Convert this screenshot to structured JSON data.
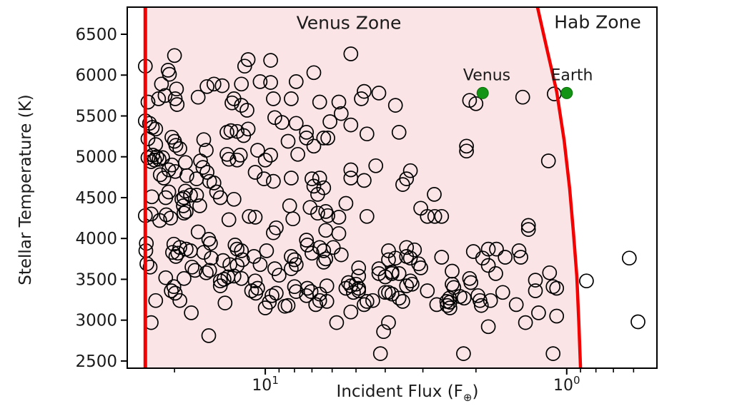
{
  "figure": {
    "venus_zone_label": "Venus Zone",
    "hab_zone_label": "Hab Zone"
  },
  "style": {
    "boundary_red": "#f40000",
    "venus_zone_fill": "#fbe4e6",
    "planet_green": "#149414",
    "hab_label_green": "#156415",
    "marker_edge": "#000000",
    "text_black": "#1a1a1a"
  },
  "chart_data": {
    "type": "scatter",
    "title": "",
    "xlabel_parts": {
      "main": "Incident Flux (F",
      "sub": "⊕",
      "end": ")"
    },
    "ylabel": "Stellar Temperature (K)",
    "x_axis": {
      "scale": "log",
      "inverted": true,
      "range_left": 28.7,
      "range_right": 0.502,
      "major_ticks": [
        {
          "value": 10,
          "base": "10",
          "exponent": "1"
        },
        {
          "value": 1,
          "base": "10",
          "exponent": "0"
        }
      ],
      "minor_ticks": [
        20,
        9,
        8,
        7,
        6,
        5,
        4,
        3,
        2,
        0.9,
        0.8,
        0.7,
        0.6
      ]
    },
    "y_axis": {
      "range_bottom": 2412,
      "range_top": 6832,
      "ticks": [
        6500,
        6000,
        5500,
        5000,
        4500,
        4000,
        3500,
        3000,
        2500
      ]
    },
    "zones": {
      "venus_zone": {
        "label": "Venus Zone",
        "inner_edge_flux": 25.0,
        "outer_edge_curve": [
          [
            1.25,
            6830
          ],
          [
            1.16,
            6300
          ],
          [
            1.08,
            5800
          ],
          [
            1.02,
            5200
          ],
          [
            0.978,
            4610
          ],
          [
            0.95,
            4070
          ],
          [
            0.926,
            3540
          ],
          [
            0.912,
            2980
          ],
          [
            0.9,
            2410
          ]
        ]
      },
      "hab_zone": {
        "label": "Hab Zone"
      }
    },
    "reference_planets": [
      {
        "label": "Venus",
        "flux": 1.9,
        "temp": 5780
      },
      {
        "label": "Earth",
        "flux": 1.0,
        "temp": 5780
      }
    ],
    "points": [
      [
        20,
        6240
      ],
      [
        25,
        6110
      ],
      [
        21,
        6060
      ],
      [
        20.8,
        6010
      ],
      [
        22.1,
        5890
      ],
      [
        19.7,
        5830
      ],
      [
        15.6,
        5860
      ],
      [
        14.8,
        5890
      ],
      [
        13.9,
        5870
      ],
      [
        12,
        5890
      ],
      [
        11.4,
        6190
      ],
      [
        11.7,
        6110
      ],
      [
        9.6,
        6180
      ],
      [
        10.4,
        5920
      ],
      [
        9.6,
        5910
      ],
      [
        7.9,
        5920
      ],
      [
        16.7,
        5730
      ],
      [
        24.5,
        5670
      ],
      [
        22.6,
        5710
      ],
      [
        21.5,
        5750
      ],
      [
        19.9,
        5710
      ],
      [
        19.6,
        5640
      ],
      [
        12.7,
        5710
      ],
      [
        12.9,
        5660
      ],
      [
        12,
        5630
      ],
      [
        11.5,
        5570
      ],
      [
        9.4,
        5710
      ],
      [
        8.2,
        5710
      ],
      [
        9.3,
        5480
      ],
      [
        8.8,
        5420
      ],
      [
        25,
        5440
      ],
      [
        24.2,
        5410
      ],
      [
        23.7,
        5360
      ],
      [
        23.1,
        5340
      ],
      [
        24.5,
        5220
      ],
      [
        23.1,
        5150
      ],
      [
        20.4,
        5240
      ],
      [
        20,
        5190
      ],
      [
        19.8,
        5140
      ],
      [
        19.2,
        5100
      ],
      [
        16,
        5210
      ],
      [
        15.7,
        5080
      ],
      [
        13.4,
        5300
      ],
      [
        13,
        5320
      ],
      [
        12.4,
        5310
      ],
      [
        11.8,
        5260
      ],
      [
        11.4,
        5340
      ],
      [
        10.6,
        5080
      ],
      [
        9.6,
        5020
      ],
      [
        10,
        4960
      ],
      [
        8.4,
        5190
      ],
      [
        24.5,
        4990
      ],
      [
        23.6,
        5020
      ],
      [
        22.9,
        5000
      ],
      [
        22.5,
        4970
      ],
      [
        21.9,
        4990
      ],
      [
        23.3,
        4960
      ],
      [
        23.9,
        4940
      ],
      [
        20.4,
        4900
      ],
      [
        20.9,
        4840
      ],
      [
        19.9,
        4820
      ],
      [
        22.3,
        4780
      ],
      [
        21.7,
        4740
      ],
      [
        18.4,
        4930
      ],
      [
        16.4,
        4950
      ],
      [
        16.1,
        4870
      ],
      [
        15.6,
        4810
      ],
      [
        18.2,
        4770
      ],
      [
        16.9,
        4730
      ],
      [
        15.3,
        4700
      ],
      [
        14.8,
        4680
      ],
      [
        13.4,
        5030
      ],
      [
        13.2,
        4970
      ],
      [
        12.4,
        4960
      ],
      [
        12.1,
        5020
      ],
      [
        10.8,
        4810
      ],
      [
        10.1,
        4730
      ],
      [
        9.4,
        4700
      ],
      [
        8.2,
        4740
      ],
      [
        7.8,
        5030
      ],
      [
        7.9,
        5410
      ],
      [
        5.2,
        6260
      ],
      [
        6.9,
        6030
      ],
      [
        4.7,
        5800
      ],
      [
        4.8,
        5710
      ],
      [
        4.2,
        5780
      ],
      [
        6.6,
        5670
      ],
      [
        5.7,
        5670
      ],
      [
        3.7,
        5630
      ],
      [
        5.6,
        5530
      ],
      [
        6.1,
        5430
      ],
      [
        5.2,
        5390
      ],
      [
        4.6,
        5280
      ],
      [
        3.6,
        5300
      ],
      [
        6.4,
        5230
      ],
      [
        6.2,
        5230
      ],
      [
        7.3,
        5300
      ],
      [
        7.3,
        5230
      ],
      [
        6.9,
        5130
      ],
      [
        4.3,
        4890
      ],
      [
        5.2,
        4840
      ],
      [
        5.2,
        4740
      ],
      [
        4.7,
        4710
      ],
      [
        3.3,
        4830
      ],
      [
        3.4,
        4730
      ],
      [
        3.5,
        4660
      ],
      [
        7,
        4730
      ],
      [
        6.6,
        4740
      ],
      [
        6.9,
        4640
      ],
      [
        6.4,
        4620
      ],
      [
        6.7,
        4540
      ],
      [
        2.1,
        5690
      ],
      [
        2,
        5650
      ],
      [
        2.15,
        5130
      ],
      [
        2.15,
        5070
      ],
      [
        1.1,
        5770
      ],
      [
        1.4,
        5730
      ],
      [
        1.15,
        4950
      ],
      [
        23.8,
        4510
      ],
      [
        21.4,
        4500
      ],
      [
        20.9,
        4570
      ],
      [
        18.9,
        4480
      ],
      [
        18.4,
        4580
      ],
      [
        17.7,
        4530
      ],
      [
        18.6,
        4500
      ],
      [
        16.9,
        4530
      ],
      [
        14.5,
        4570
      ],
      [
        14.1,
        4500
      ],
      [
        12.7,
        4480
      ],
      [
        18.7,
        4400
      ],
      [
        18.3,
        4330
      ],
      [
        18.6,
        4310
      ],
      [
        16.5,
        4400
      ],
      [
        25,
        4280
      ],
      [
        23.9,
        4300
      ],
      [
        22.4,
        4220
      ],
      [
        21.3,
        4290
      ],
      [
        20.6,
        4250
      ],
      [
        13.2,
        4230
      ],
      [
        11.3,
        4270
      ],
      [
        10.8,
        4260
      ],
      [
        16.7,
        4080
      ],
      [
        9.4,
        4070
      ],
      [
        9.2,
        4130
      ],
      [
        24.8,
        3940
      ],
      [
        24.9,
        3850
      ],
      [
        24.7,
        3690
      ],
      [
        24.1,
        3650
      ],
      [
        20.1,
        3930
      ],
      [
        19.2,
        3890
      ],
      [
        20.3,
        3830
      ],
      [
        19.8,
        3780
      ],
      [
        19.5,
        3820
      ],
      [
        18.3,
        3870
      ],
      [
        17.7,
        3850
      ],
      [
        15.4,
        3990
      ],
      [
        15.2,
        3940
      ],
      [
        16,
        3830
      ],
      [
        15.1,
        3760
      ],
      [
        13.8,
        3730
      ],
      [
        12.6,
        3920
      ],
      [
        12.4,
        3870
      ],
      [
        12,
        3850
      ],
      [
        13.1,
        3680
      ],
      [
        12.4,
        3670
      ],
      [
        11.9,
        3740
      ],
      [
        10.9,
        3780
      ],
      [
        10.4,
        3680
      ],
      [
        9.9,
        3850
      ],
      [
        9.3,
        3630
      ],
      [
        9,
        3550
      ],
      [
        8.2,
        3780
      ],
      [
        8,
        3740
      ],
      [
        7.9,
        3680
      ],
      [
        8.2,
        3630
      ],
      [
        21.4,
        3520
      ],
      [
        18.6,
        3510
      ],
      [
        17.5,
        3650
      ],
      [
        17.1,
        3610
      ],
      [
        15.7,
        3580
      ],
      [
        15.3,
        3610
      ],
      [
        14.1,
        3480
      ],
      [
        13.7,
        3500
      ],
      [
        14.1,
        3420
      ],
      [
        13.3,
        3530
      ],
      [
        12.7,
        3540
      ],
      [
        12,
        3510
      ],
      [
        10.8,
        3480
      ],
      [
        10.6,
        3390
      ],
      [
        11.1,
        3360
      ],
      [
        10.75,
        3330
      ],
      [
        20.1,
        3410
      ],
      [
        19.9,
        3330
      ],
      [
        20.5,
        3360
      ],
      [
        23.1,
        3240
      ],
      [
        19.2,
        3240
      ],
      [
        13.6,
        3210
      ],
      [
        9.7,
        3220
      ],
      [
        10,
        3150
      ],
      [
        9.5,
        3300
      ],
      [
        9.2,
        3330
      ],
      [
        17.6,
        3090
      ],
      [
        23.9,
        2970
      ],
      [
        15.4,
        2810
      ],
      [
        8.6,
        3170
      ],
      [
        8.4,
        3180
      ],
      [
        8,
        3410
      ],
      [
        7.9,
        3350
      ],
      [
        8.3,
        4400
      ],
      [
        8.1,
        4240
      ],
      [
        2.75,
        4540
      ],
      [
        7.1,
        4380
      ],
      [
        6.7,
        4310
      ],
      [
        6.3,
        4330
      ],
      [
        6.2,
        4280
      ],
      [
        5.4,
        4430
      ],
      [
        5.7,
        4260
      ],
      [
        4.6,
        4270
      ],
      [
        3.05,
        4370
      ],
      [
        2.9,
        4270
      ],
      [
        2.74,
        4270
      ],
      [
        2.6,
        4270
      ],
      [
        6.3,
        4100
      ],
      [
        5.7,
        4060
      ],
      [
        7.3,
        3980
      ],
      [
        7.25,
        3920
      ],
      [
        6.6,
        3890
      ],
      [
        6.4,
        3850
      ],
      [
        7,
        3820
      ],
      [
        6.3,
        3750
      ],
      [
        6.4,
        3710
      ],
      [
        5.95,
        3890
      ],
      [
        5.6,
        3800
      ],
      [
        3.9,
        3850
      ],
      [
        3.9,
        3740
      ],
      [
        3.7,
        3760
      ],
      [
        3.4,
        3890
      ],
      [
        3.2,
        3860
      ],
      [
        3.4,
        3780
      ],
      [
        3.3,
        3760
      ],
      [
        3.1,
        3690
      ],
      [
        3.05,
        3640
      ],
      [
        2.6,
        3770
      ],
      [
        2.04,
        3840
      ],
      [
        1.9,
        3760
      ],
      [
        4.9,
        3640
      ],
      [
        4.9,
        3540
      ],
      [
        4.2,
        3630
      ],
      [
        4.2,
        3570
      ],
      [
        3.8,
        3590
      ],
      [
        3.8,
        3570
      ],
      [
        4,
        3530
      ],
      [
        3.6,
        3570
      ],
      [
        5.3,
        3460
      ],
      [
        5.2,
        3420
      ],
      [
        5,
        3440
      ],
      [
        4.9,
        3390
      ],
      [
        5.4,
        3390
      ],
      [
        5.1,
        3340
      ],
      [
        4.9,
        3360
      ],
      [
        3.3,
        3480
      ],
      [
        3.26,
        3440
      ],
      [
        3.4,
        3420
      ],
      [
        2.9,
        3360
      ],
      [
        2.4,
        3600
      ],
      [
        2.4,
        3440
      ],
      [
        2.37,
        3400
      ],
      [
        2.1,
        3510
      ],
      [
        2.08,
        3460
      ],
      [
        7.25,
        3390
      ],
      [
        7.05,
        3350
      ],
      [
        7.3,
        3300
      ],
      [
        6.6,
        3320
      ],
      [
        6.25,
        3420
      ],
      [
        6.6,
        3240
      ],
      [
        6.25,
        3230
      ],
      [
        6.8,
        3190
      ],
      [
        4.7,
        3190
      ],
      [
        4.6,
        3230
      ],
      [
        4.4,
        3240
      ],
      [
        4,
        3340
      ],
      [
        3.9,
        3340
      ],
      [
        3.8,
        3320
      ],
      [
        3.6,
        3270
      ],
      [
        3.5,
        3230
      ],
      [
        5.2,
        3100
      ],
      [
        2.7,
        3190
      ],
      [
        2.5,
        3230
      ],
      [
        2.45,
        3270
      ],
      [
        2.44,
        3220
      ],
      [
        2.49,
        3180
      ],
      [
        2.44,
        3150
      ],
      [
        2.26,
        3290
      ],
      [
        2.19,
        3270
      ],
      [
        1.97,
        3300
      ],
      [
        1.94,
        3240
      ],
      [
        1.92,
        3180
      ],
      [
        5.8,
        2970
      ],
      [
        3.9,
        2970
      ],
      [
        4.05,
        2860
      ],
      [
        4.15,
        2590
      ],
      [
        2.2,
        2590
      ],
      [
        1.34,
        4160
      ],
      [
        1.34,
        4110
      ],
      [
        1.82,
        3870
      ],
      [
        1.71,
        3870
      ],
      [
        1.82,
        3670
      ],
      [
        1.6,
        3770
      ],
      [
        1.44,
        3850
      ],
      [
        1.42,
        3770
      ],
      [
        1.72,
        3570
      ],
      [
        1.27,
        3490
      ],
      [
        1.27,
        3360
      ],
      [
        1.14,
        3580
      ],
      [
        1.11,
        3410
      ],
      [
        1.08,
        3390
      ],
      [
        1.79,
        3240
      ],
      [
        1.63,
        3340
      ],
      [
        1.47,
        3190
      ],
      [
        1.37,
        2970
      ],
      [
        1.24,
        3090
      ],
      [
        1.08,
        3050
      ],
      [
        1.82,
        2920
      ],
      [
        1.11,
        2590
      ],
      [
        0.86,
        3480
      ],
      [
        0.62,
        3760
      ],
      [
        0.58,
        2980
      ]
    ]
  }
}
